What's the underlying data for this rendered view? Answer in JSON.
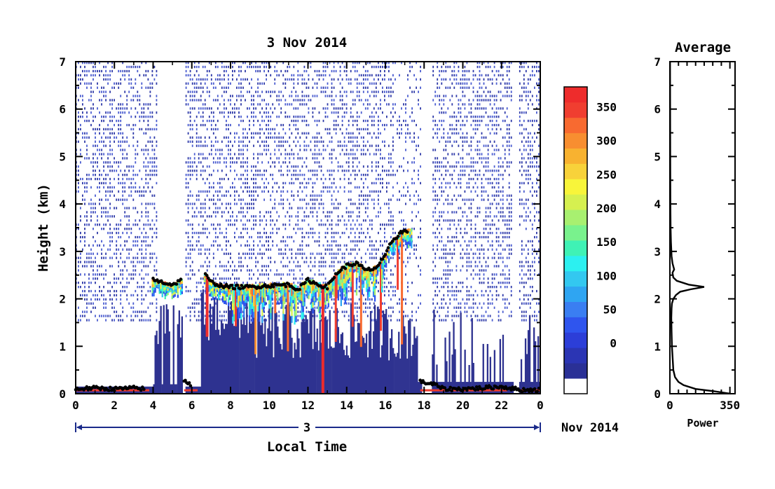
{
  "chart_data": [
    {
      "type": "heatmap",
      "title": "3 Nov 2014",
      "xlabel": "Local Time",
      "ylabel": "Height (km)",
      "xlim": [
        0,
        24
      ],
      "ylim": [
        0,
        7
      ],
      "x_ticks": [
        "0",
        "2",
        "4",
        "6",
        "8",
        "10",
        "12",
        "14",
        "16",
        "18",
        "20",
        "22",
        "0"
      ],
      "y_ticks": [
        "0",
        "1",
        "2",
        "3",
        "4",
        "5",
        "6",
        "7"
      ],
      "date_bar": {
        "day_label": "3",
        "month_year_label": "Nov 2014"
      },
      "colorbar": {
        "range": [
          0,
          380
        ],
        "tick_labels": [
          "0",
          "50",
          "100",
          "150",
          "200",
          "250",
          "300",
          "350"
        ],
        "colors": [
          "#ffffff",
          "#2a3096",
          "#2b35b4",
          "#2c3ed8",
          "#2f55ee",
          "#3a7ef2",
          "#2fa5f2",
          "#33c8f0",
          "#2cf0f0",
          "#3ff2b5",
          "#79f28d",
          "#a8f070",
          "#d6f050",
          "#f8f53a",
          "#f8d23a",
          "#f8b230",
          "#f88e30",
          "#f86a30",
          "#f03e30",
          "#ee2c2c"
        ]
      },
      "cloud_base_height_km": [
        {
          "x": 0.0,
          "y": 0.1
        },
        {
          "x": 1.0,
          "y": 0.12
        },
        {
          "x": 2.0,
          "y": 0.1
        },
        {
          "x": 3.0,
          "y": 0.12
        },
        {
          "x": 3.6,
          "y": 0.1
        },
        {
          "x": 4.0,
          "y": 2.4
        },
        {
          "x": 4.5,
          "y": 2.35
        },
        {
          "x": 5.0,
          "y": 2.3
        },
        {
          "x": 5.5,
          "y": 2.4
        },
        {
          "x": 5.6,
          "y": 0.3
        },
        {
          "x": 6.0,
          "y": 0.15
        },
        {
          "x": 6.7,
          "y": 2.5
        },
        {
          "x": 7.0,
          "y": 2.35
        },
        {
          "x": 7.5,
          "y": 2.28
        },
        {
          "x": 8.0,
          "y": 2.25
        },
        {
          "x": 9.0,
          "y": 2.25
        },
        {
          "x": 10.0,
          "y": 2.28
        },
        {
          "x": 11.0,
          "y": 2.3
        },
        {
          "x": 11.5,
          "y": 2.2
        },
        {
          "x": 12.0,
          "y": 2.4
        },
        {
          "x": 12.5,
          "y": 2.3
        },
        {
          "x": 13.0,
          "y": 2.25
        },
        {
          "x": 13.5,
          "y": 2.55
        },
        {
          "x": 14.0,
          "y": 2.7
        },
        {
          "x": 14.5,
          "y": 2.75
        },
        {
          "x": 15.0,
          "y": 2.6
        },
        {
          "x": 15.5,
          "y": 2.65
        },
        {
          "x": 16.0,
          "y": 2.9
        },
        {
          "x": 16.3,
          "y": 3.2
        },
        {
          "x": 16.8,
          "y": 3.4
        },
        {
          "x": 17.2,
          "y": 3.45
        },
        {
          "x": 17.8,
          "y": 0.25
        },
        {
          "x": 18.5,
          "y": 0.2
        },
        {
          "x": 19.0,
          "y": 0.1
        },
        {
          "x": 20.0,
          "y": 0.1
        },
        {
          "x": 21.0,
          "y": 0.12
        },
        {
          "x": 22.0,
          "y": 0.15
        },
        {
          "x": 23.0,
          "y": 0.08
        },
        {
          "x": 24.0,
          "y": 0.08
        }
      ]
    },
    {
      "type": "line",
      "title": "Average",
      "xlabel": "Power",
      "ylabel": "",
      "xlim": [
        0,
        380
      ],
      "ylim": [
        0,
        7
      ],
      "x_ticks": [
        "0",
        "350"
      ],
      "y_ticks": [
        "0",
        "1",
        "2",
        "3",
        "4",
        "5",
        "6",
        "7"
      ],
      "series": [
        {
          "x": [
            355,
            260,
            150,
            80,
            50,
            30,
            20,
            15,
            12,
            10,
            8,
            10,
            12,
            20,
            35,
            60,
            120,
            200,
            110,
            40,
            20,
            15,
            25,
            15,
            10,
            6,
            4,
            3,
            2,
            1
          ],
          "y": [
            0.0,
            0.05,
            0.1,
            0.18,
            0.25,
            0.35,
            0.5,
            0.8,
            1.0,
            1.3,
            1.6,
            1.8,
            1.9,
            2.0,
            2.08,
            2.15,
            2.2,
            2.25,
            2.3,
            2.38,
            2.45,
            2.55,
            2.62,
            2.75,
            2.9,
            3.2,
            3.5,
            4.0,
            5.0,
            7.0
          ]
        }
      ]
    }
  ]
}
